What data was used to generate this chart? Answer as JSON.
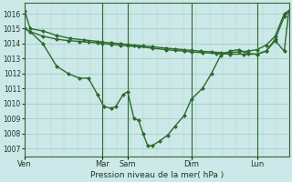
{
  "xlabel": "Pression niveau de la mer( hPa )",
  "background_color": "#cce8e8",
  "grid_color": "#99ccbb",
  "line_color": "#2d6a2d",
  "vline_color": "#2d6a2d",
  "ylim": [
    1006.5,
    1016.7
  ],
  "yticks": [
    1007,
    1008,
    1009,
    1010,
    1011,
    1012,
    1013,
    1014,
    1015,
    1016
  ],
  "day_labels": [
    "Ven",
    "Mar",
    "Sam",
    "Dim",
    "Lun"
  ],
  "day_x": [
    0,
    85,
    113,
    183,
    255
  ],
  "xlim": [
    0,
    290
  ],
  "s1_x": [
    0,
    6,
    20,
    35,
    50,
    65,
    80,
    85,
    95,
    105,
    113,
    120,
    130,
    140,
    155,
    165,
    175,
    183,
    193,
    205,
    215,
    225,
    235,
    245,
    255,
    265,
    275,
    285,
    290
  ],
  "s1_y": [
    1016.2,
    1015.0,
    1014.85,
    1014.55,
    1014.35,
    1014.25,
    1014.15,
    1014.1,
    1014.05,
    1014.0,
    1013.95,
    1013.9,
    1013.85,
    1013.8,
    1013.7,
    1013.65,
    1013.6,
    1013.55,
    1013.5,
    1013.45,
    1013.4,
    1013.4,
    1013.45,
    1013.5,
    1013.6,
    1013.9,
    1014.5,
    1016.0,
    1016.2
  ],
  "s2_x": [
    0,
    6,
    20,
    35,
    48,
    60,
    70,
    80,
    87,
    95,
    100,
    108,
    113,
    120,
    125,
    130,
    135,
    140,
    148,
    157,
    165,
    175,
    183,
    195,
    205,
    215,
    225,
    235,
    245,
    255,
    265,
    275,
    285,
    290
  ],
  "s2_y": [
    1015.0,
    1014.8,
    1014.0,
    1012.5,
    1012.0,
    1011.7,
    1011.7,
    1010.6,
    1009.8,
    1009.7,
    1009.8,
    1010.6,
    1010.8,
    1009.0,
    1008.9,
    1008.0,
    1007.2,
    1007.2,
    1007.5,
    1007.9,
    1008.5,
    1009.2,
    1010.3,
    1011.0,
    1012.0,
    1013.2,
    1013.5,
    1013.6,
    1013.35,
    1013.3,
    1013.5,
    1014.2,
    1013.5,
    1016.2
  ],
  "s3_x": [
    0,
    6,
    20,
    35,
    48,
    60,
    70,
    80,
    85,
    95,
    105,
    113,
    125,
    140,
    155,
    165,
    175,
    183,
    195,
    210,
    225,
    240,
    255,
    265,
    275,
    285,
    290
  ],
  "s3_y": [
    1015.0,
    1014.8,
    1014.5,
    1014.3,
    1014.2,
    1014.15,
    1014.1,
    1014.05,
    1014.0,
    1013.95,
    1013.9,
    1013.85,
    1013.8,
    1013.7,
    1013.6,
    1013.55,
    1013.5,
    1013.45,
    1013.4,
    1013.35,
    1013.3,
    1013.3,
    1013.3,
    1013.5,
    1014.3,
    1015.8,
    1016.2
  ]
}
